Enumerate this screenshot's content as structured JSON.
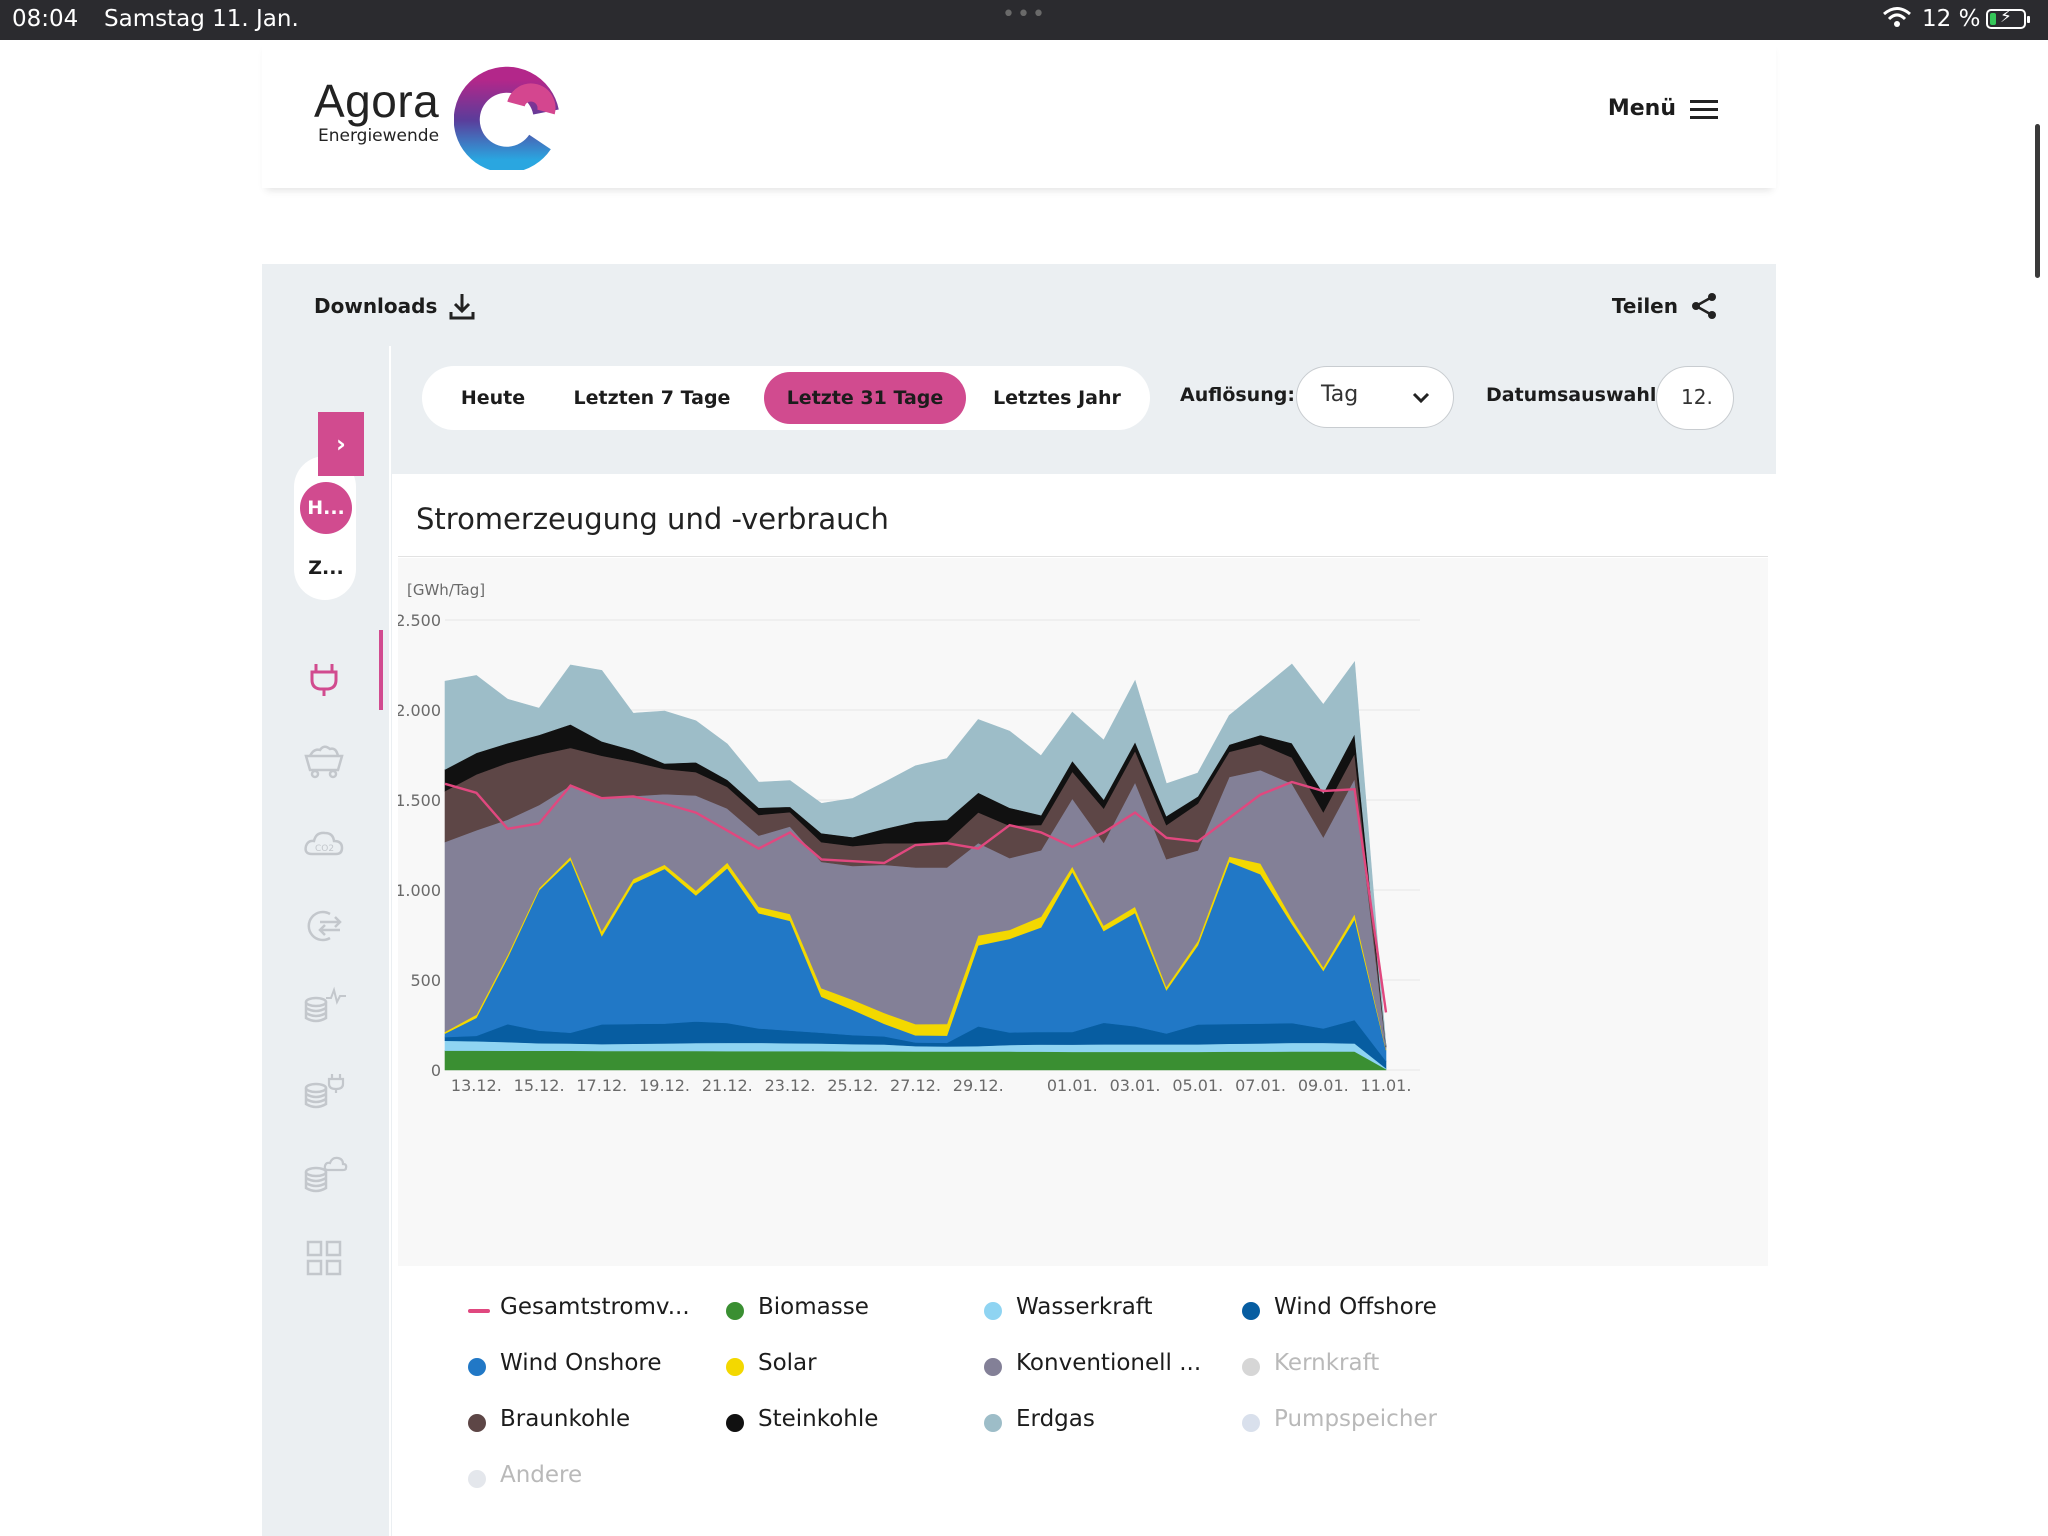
{
  "status_bar": {
    "time": "08:04",
    "date": "Samstag 11. Jan.",
    "battery": "12 %"
  },
  "header": {
    "logo_name": "Agora",
    "logo_sub": "Energiewende",
    "menu_label": "Menü"
  },
  "toolbar": {
    "downloads_label": "Downloads",
    "share_label": "Teilen"
  },
  "sidebar": {
    "pill_top": "H...",
    "pill_bottom": "Z...",
    "toggle": "›"
  },
  "filters": {
    "tabs": [
      {
        "label": "Heute",
        "active": false
      },
      {
        "label": "Letzten 7 Tage",
        "active": false
      },
      {
        "label": "Letzte 31 Tage",
        "active": true
      },
      {
        "label": "Letztes Jahr",
        "active": false
      }
    ],
    "resolution_label": "Auflösung:",
    "resolution_value": "Tag",
    "date_label": "Datumsauswahl:",
    "date_value": "12."
  },
  "colors": {
    "accent": "#d14b8f"
  },
  "chart_data": {
    "type": "area",
    "title": "Stromerzeugung und -verbrauch",
    "unit": "[GWh/Tag]",
    "ylim": [
      0,
      2500
    ],
    "yticks": [
      0,
      500,
      1000,
      1500,
      2000,
      2500
    ],
    "ytick_labels": [
      "0",
      "500",
      "1.000",
      "1.500",
      "2.000",
      "2.500"
    ],
    "x": [
      "12.12.",
      "13.12.",
      "14.12.",
      "15.12.",
      "16.12.",
      "17.12.",
      "18.12.",
      "19.12.",
      "20.12.",
      "21.12.",
      "22.12.",
      "23.12.",
      "24.12.",
      "25.12.",
      "26.12.",
      "27.12.",
      "28.12.",
      "29.12.",
      "30.12.",
      "31.12.",
      "01.01.",
      "02.01.",
      "03.01.",
      "04.01.",
      "05.01.",
      "06.01.",
      "07.01.",
      "08.01.",
      "09.01.",
      "10.01.",
      "11.01."
    ],
    "xtick_labels": [
      "13.12.",
      "15.12.",
      "17.12.",
      "19.12.",
      "21.12.",
      "23.12.",
      "25.12.",
      "27.12.",
      "29.12.",
      "01.01.",
      "03.01.",
      "05.01.",
      "07.01.",
      "09.01.",
      "11.01."
    ],
    "grid": true,
    "series": [
      {
        "name": "Biomasse",
        "color": "#3a8f32",
        "values": [
          108,
          108,
          107,
          107,
          107,
          106,
          106,
          106,
          106,
          105,
          105,
          105,
          105,
          104,
          104,
          103,
          103,
          103,
          103,
          102,
          101,
          101,
          101,
          101,
          101,
          102,
          102,
          103,
          103,
          103,
          5
        ]
      },
      {
        "name": "Wasserkraft",
        "color": "#8fd4f2",
        "values": [
          55,
          52,
          48,
          42,
          40,
          38,
          40,
          42,
          44,
          46,
          46,
          44,
          42,
          40,
          38,
          30,
          28,
          30,
          36,
          40,
          40,
          42,
          42,
          42,
          42,
          44,
          46,
          48,
          48,
          45,
          5
        ]
      },
      {
        "name": "Wind Offshore",
        "color": "#075da1",
        "values": [
          20,
          30,
          100,
          70,
          60,
          110,
          110,
          110,
          120,
          110,
          80,
          70,
          60,
          50,
          45,
          20,
          20,
          110,
          70,
          70,
          70,
          120,
          100,
          60,
          110,
          110,
          110,
          110,
          80,
          130,
          40
        ]
      },
      {
        "name": "Wind Onshore",
        "color": "#2178c6",
        "values": [
          20,
          100,
          370,
          780,
          960,
          490,
          780,
          860,
          700,
          860,
          640,
          610,
          200,
          140,
          70,
          40,
          40,
          450,
          520,
          580,
          890,
          510,
          630,
          240,
          440,
          900,
          830,
          550,
          320,
          560,
          60
        ]
      },
      {
        "name": "Solar",
        "color": "#f3d800",
        "values": [
          10,
          18,
          15,
          12,
          18,
          28,
          25,
          23,
          27,
          32,
          36,
          38,
          48,
          56,
          60,
          62,
          65,
          55,
          50,
          60,
          30,
          30,
          35,
          20,
          25,
          30,
          60,
          30,
          20,
          30,
          5
        ]
      },
      {
        "name": "Konventionell ...",
        "color": "#838097",
        "values": [
          1054,
          1024,
          751,
          461,
          395,
          739,
          461,
          392,
          528,
          300,
          395,
          486,
          701,
          744,
          823,
          870,
          869,
          513,
          398,
          369,
          377,
          460,
          690,
          708,
          502,
          442,
          518,
          750,
          722,
          750,
          10
        ]
      },
      {
        "name": "Braunkohle",
        "color": "#5d4646",
        "values": [
          283,
          310,
          315,
          280,
          210,
          235,
          190,
          140,
          130,
          120,
          115,
          80,
          110,
          110,
          120,
          135,
          145,
          170,
          180,
          140,
          150,
          190,
          175,
          190,
          260,
          140,
          145,
          145,
          140,
          140,
          5
        ]
      },
      {
        "name": "Steinkohle",
        "color": "#111111",
        "values": [
          120,
          120,
          110,
          110,
          130,
          80,
          65,
          30,
          55,
          40,
          40,
          30,
          50,
          50,
          80,
          120,
          120,
          110,
          100,
          55,
          60,
          50,
          50,
          50,
          40,
          40,
          50,
          80,
          105,
          110,
          5
        ]
      },
      {
        "name": "Erdgas",
        "color": "#9dbdc8",
        "values": [
          490,
          430,
          244,
          148,
          330,
          394,
          205,
          291,
          230,
          198,
          142,
          145,
          165,
          215,
          258,
          310,
          340,
          406,
          426,
          330,
          270,
          330,
          341,
          180,
          130,
          162,
          250,
          439,
          493,
          400,
          0
        ]
      }
    ],
    "line_series": {
      "name": "Gesamtstromv...",
      "color": "#e0487f",
      "values": [
        1590,
        1540,
        1340,
        1370,
        1580,
        1510,
        1520,
        1480,
        1430,
        1330,
        1230,
        1320,
        1170,
        1160,
        1150,
        1250,
        1260,
        1230,
        1360,
        1320,
        1240,
        1320,
        1430,
        1290,
        1270,
        1400,
        1530,
        1600,
        1550,
        1560,
        320
      ]
    },
    "legend": [
      {
        "name": "Gesamtstromv...",
        "color": "#e0487f",
        "shape": "line",
        "visible": true
      },
      {
        "name": "Biomasse",
        "color": "#3a8f32",
        "visible": true
      },
      {
        "name": "Wasserkraft",
        "color": "#8fd4f2",
        "visible": true
      },
      {
        "name": "Wind Offshore",
        "color": "#075da1",
        "visible": true
      },
      {
        "name": "Wind Onshore",
        "color": "#2178c6",
        "visible": true
      },
      {
        "name": "Solar",
        "color": "#f3d800",
        "visible": true
      },
      {
        "name": "Konventionell ...",
        "color": "#838097",
        "visible": true
      },
      {
        "name": "Kernkraft",
        "color": "#d6d6d6",
        "visible": false
      },
      {
        "name": "Braunkohle",
        "color": "#5d4646",
        "visible": true
      },
      {
        "name": "Steinkohle",
        "color": "#111111",
        "visible": true
      },
      {
        "name": "Erdgas",
        "color": "#9dbdc8",
        "visible": true
      },
      {
        "name": "Pumpspeicher",
        "color": "#d9e0ec",
        "visible": false
      },
      {
        "name": "Andere",
        "color": "#e4e7ec",
        "visible": false
      }
    ]
  }
}
